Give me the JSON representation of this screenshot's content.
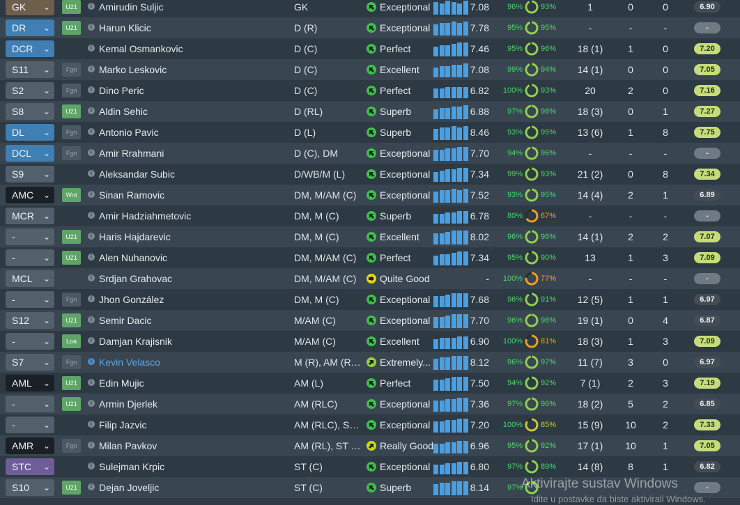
{
  "colors": {
    "accent_blue": "#4a9fe3",
    "rating_green": "#c6dc7a",
    "condition_green": "#49d56a",
    "sharpness_orange": "#f0a020",
    "highlight_name": "#5fa3dc"
  },
  "players": [
    {
      "pos": "GK",
      "pos_style": "brown",
      "badge": "U21",
      "badge_style": "green",
      "name": "Amirudin Suljic",
      "positions": "GK",
      "ability": "Exceptional",
      "ability_icon": "arrow-up-left",
      "ability_color": "#3dbf4a",
      "bars": [
        9,
        8,
        10,
        9,
        8,
        10
      ],
      "avg": "7.08",
      "cond": "96%",
      "cond_level": 0.96,
      "sharp": "93%",
      "sharp_level": 0.93,
      "sharp_color": "#8fd14f",
      "apps": "1",
      "goals": "0",
      "assists": "0",
      "rating": "6.90",
      "rating_style": "dark"
    },
    {
      "pos": "DR",
      "pos_style": "blue",
      "badge": "U21",
      "badge_style": "green",
      "name": "Harun Klicic",
      "positions": "D (R)",
      "ability": "Exceptional",
      "ability_icon": "arrow-up-left",
      "ability_color": "#3dbf4a",
      "bars": [
        8,
        9,
        9,
        10,
        9,
        10
      ],
      "avg": "7.78",
      "cond": "95%",
      "cond_level": 0.95,
      "sharp": "95%",
      "sharp_level": 0.95,
      "sharp_color": "#8fd14f",
      "apps": "-",
      "goals": "-",
      "assists": "-",
      "rating": "-",
      "rating_style": "grey"
    },
    {
      "pos": "DCR",
      "pos_style": "blue",
      "badge": "",
      "badge_style": "none",
      "name": "Kemal Osmankovic",
      "positions": "D (C)",
      "ability": "Perfect",
      "ability_icon": "arrow-up-left",
      "ability_color": "#3dbf4a",
      "bars": [
        7,
        8,
        8,
        9,
        10,
        10
      ],
      "avg": "7.46",
      "cond": "95%",
      "cond_level": 0.95,
      "sharp": "96%",
      "sharp_level": 0.96,
      "sharp_color": "#8fd14f",
      "apps": "18 (1)",
      "goals": "1",
      "assists": "0",
      "rating": "7.20",
      "rating_style": "green"
    },
    {
      "pos": "S11",
      "pos_style": "grey",
      "badge": "Fgn",
      "badge_style": "gray",
      "name": "Marko Leskovic",
      "positions": "D (C)",
      "ability": "Excellent",
      "ability_icon": "arrow-up-left",
      "ability_color": "#3dbf4a",
      "bars": [
        7,
        8,
        8,
        9,
        9,
        10
      ],
      "avg": "7.08",
      "cond": "99%",
      "cond_level": 0.99,
      "sharp": "94%",
      "sharp_level": 0.94,
      "sharp_color": "#8fd14f",
      "apps": "14 (1)",
      "goals": "0",
      "assists": "0",
      "rating": "7.05",
      "rating_style": "green"
    },
    {
      "pos": "S2",
      "pos_style": "grey",
      "badge": "Fgn",
      "badge_style": "gray",
      "name": "Dino Peric",
      "positions": "D (C)",
      "ability": "Perfect",
      "ability_icon": "arrow-up-left",
      "ability_color": "#3dbf4a",
      "bars": [
        7,
        7,
        8,
        8,
        8,
        8
      ],
      "avg": "6.82",
      "cond": "100%",
      "cond_level": 1.0,
      "sharp": "93%",
      "sharp_level": 0.93,
      "sharp_color": "#8fd14f",
      "apps": "20",
      "goals": "2",
      "assists": "0",
      "rating": "7.16",
      "rating_style": "green"
    },
    {
      "pos": "S8",
      "pos_style": "grey",
      "badge": "U21",
      "badge_style": "green",
      "name": "Aldin Sehic",
      "positions": "D (RL)",
      "ability": "Superb",
      "ability_icon": "arrow-up-left",
      "ability_color": "#3dbf4a",
      "bars": [
        7,
        8,
        8,
        9,
        9,
        10
      ],
      "avg": "6.88",
      "cond": "97%",
      "cond_level": 0.97,
      "sharp": "98%",
      "sharp_level": 0.98,
      "sharp_color": "#8fd14f",
      "apps": "18 (3)",
      "goals": "0",
      "assists": "1",
      "rating": "7.27",
      "rating_style": "green"
    },
    {
      "pos": "DL",
      "pos_style": "blue",
      "badge": "Fgn",
      "badge_style": "gray",
      "name": "Antonio Pavic",
      "positions": "D (L)",
      "ability": "Superb",
      "ability_icon": "arrow-up-left",
      "ability_color": "#3dbf4a",
      "bars": [
        8,
        9,
        9,
        10,
        9,
        10
      ],
      "avg": "8.46",
      "cond": "93%",
      "cond_level": 0.93,
      "sharp": "95%",
      "sharp_level": 0.95,
      "sharp_color": "#8fd14f",
      "apps": "13 (6)",
      "goals": "1",
      "assists": "8",
      "rating": "7.75",
      "rating_style": "green"
    },
    {
      "pos": "DCL",
      "pos_style": "blue",
      "badge": "Fgn",
      "badge_style": "gray",
      "name": "Amir Rrahmani",
      "positions": "D (C), DM",
      "ability": "Exceptional",
      "ability_icon": "arrow-up-left",
      "ability_color": "#3dbf4a",
      "bars": [
        8,
        8,
        9,
        9,
        10,
        10
      ],
      "avg": "7.70",
      "cond": "94%",
      "cond_level": 0.94,
      "sharp": "96%",
      "sharp_level": 0.96,
      "sharp_color": "#8fd14f",
      "apps": "-",
      "goals": "-",
      "assists": "-",
      "rating": "-",
      "rating_style": "grey"
    },
    {
      "pos": "S9",
      "pos_style": "grey",
      "badge": "",
      "badge_style": "none",
      "name": "Aleksandar Subic",
      "positions": "D/WB/M (L)",
      "ability": "Exceptional",
      "ability_icon": "arrow-up-left",
      "ability_color": "#3dbf4a",
      "bars": [
        7,
        8,
        9,
        9,
        10,
        10
      ],
      "avg": "7.34",
      "cond": "99%",
      "cond_level": 0.99,
      "sharp": "93%",
      "sharp_level": 0.93,
      "sharp_color": "#8fd14f",
      "apps": "21 (2)",
      "goals": "0",
      "assists": "8",
      "rating": "7.34",
      "rating_style": "green"
    },
    {
      "pos": "AMC",
      "pos_style": "black",
      "badge": "Wnt",
      "badge_style": "green",
      "name": "Sinan Ramovic",
      "positions": "DM, M/AM (C)",
      "ability": "Exceptional",
      "ability_icon": "arrow-up-left",
      "ability_color": "#3dbf4a",
      "bars": [
        8,
        9,
        9,
        10,
        9,
        10
      ],
      "avg": "7.52",
      "cond": "93%",
      "cond_level": 0.93,
      "sharp": "95%",
      "sharp_level": 0.95,
      "sharp_color": "#8fd14f",
      "apps": "14 (4)",
      "goals": "2",
      "assists": "1",
      "rating": "6.89",
      "rating_style": "dark"
    },
    {
      "pos": "MCR",
      "pos_style": "grey",
      "badge": "",
      "badge_style": "none",
      "name": "Amir Hadziahmetovic",
      "positions": "DM, M (C)",
      "ability": "Superb",
      "ability_icon": "arrow-up-left",
      "ability_color": "#3dbf4a",
      "bars": [
        7,
        7,
        8,
        8,
        9,
        9
      ],
      "avg": "6.78",
      "cond": "80%",
      "cond_level": 0.8,
      "sharp": "67%",
      "sharp_level": 0.67,
      "sharp_color": "#f0a020",
      "apps": "-",
      "goals": "-",
      "assists": "-",
      "rating": "-",
      "rating_style": "grey"
    },
    {
      "pos": "-",
      "pos_style": "grey",
      "badge": "U21",
      "badge_style": "green",
      "name": "Haris Hajdarevic",
      "positions": "DM, M (C)",
      "ability": "Excellent",
      "ability_icon": "arrow-up-left",
      "ability_color": "#3dbf4a",
      "bars": [
        8,
        8,
        9,
        10,
        10,
        10
      ],
      "avg": "8.02",
      "cond": "96%",
      "cond_level": 0.96,
      "sharp": "96%",
      "sharp_level": 0.96,
      "sharp_color": "#8fd14f",
      "apps": "14 (1)",
      "goals": "2",
      "assists": "2",
      "rating": "7.07",
      "rating_style": "green"
    },
    {
      "pos": "-",
      "pos_style": "grey",
      "badge": "U21",
      "badge_style": "green",
      "name": "Alen Nuhanovic",
      "positions": "DM, M/AM (C)",
      "ability": "Perfect",
      "ability_icon": "arrow-up-left",
      "ability_color": "#3dbf4a",
      "bars": [
        7,
        8,
        8,
        9,
        10,
        10
      ],
      "avg": "7.34",
      "cond": "95%",
      "cond_level": 0.95,
      "sharp": "90%",
      "sharp_level": 0.9,
      "sharp_color": "#8fd14f",
      "apps": "13",
      "goals": "1",
      "assists": "3",
      "rating": "7.09",
      "rating_style": "green"
    },
    {
      "pos": "MCL",
      "pos_style": "grey",
      "badge": "",
      "badge_style": "none",
      "name": "Srdjan Grahovac",
      "positions": "DM, M/AM (C)",
      "ability": "Quite Good",
      "ability_icon": "arrow-right",
      "ability_color": "#e6d21a",
      "bars": [],
      "avg": "-",
      "cond": "100%",
      "cond_level": 1.0,
      "sharp": "77%",
      "sharp_level": 0.77,
      "sharp_color": "#f0a020",
      "apps": "-",
      "goals": "-",
      "assists": "-",
      "rating": "-",
      "rating_style": "grey"
    },
    {
      "pos": "-",
      "pos_style": "grey",
      "badge": "Fgn",
      "badge_style": "gray",
      "name": "Jhon González",
      "positions": "DM, M (C)",
      "ability": "Exceptional",
      "ability_icon": "arrow-up-left",
      "ability_color": "#3dbf4a",
      "bars": [
        8,
        8,
        9,
        10,
        10,
        10
      ],
      "avg": "7.68",
      "cond": "96%",
      "cond_level": 0.96,
      "sharp": "91%",
      "sharp_level": 0.91,
      "sharp_color": "#8fd14f",
      "apps": "12 (5)",
      "goals": "1",
      "assists": "1",
      "rating": "6.97",
      "rating_style": "dark"
    },
    {
      "pos": "S12",
      "pos_style": "grey",
      "badge": "U21",
      "badge_style": "green",
      "name": "Semir Dacic",
      "positions": "M/AM (C)",
      "ability": "Exceptional",
      "ability_icon": "arrow-up-left",
      "ability_color": "#3dbf4a",
      "bars": [
        8,
        8,
        9,
        10,
        10,
        10
      ],
      "avg": "7.70",
      "cond": "96%",
      "cond_level": 0.96,
      "sharp": "98%",
      "sharp_level": 0.98,
      "sharp_color": "#8fd14f",
      "apps": "19 (1)",
      "goals": "0",
      "assists": "4",
      "rating": "6.87",
      "rating_style": "dark"
    },
    {
      "pos": "-",
      "pos_style": "grey",
      "badge": "Loa",
      "badge_style": "green",
      "name": "Damjan Krajisnik",
      "positions": "M/AM (C)",
      "ability": "Excellent",
      "ability_icon": "arrow-up-left",
      "ability_color": "#3dbf4a",
      "bars": [
        7,
        8,
        8,
        8,
        9,
        9
      ],
      "avg": "6.90",
      "cond": "100%",
      "cond_level": 1.0,
      "sharp": "81%",
      "sharp_level": 0.81,
      "sharp_color": "#f0a020",
      "apps": "18 (3)",
      "goals": "1",
      "assists": "3",
      "rating": "7.09",
      "rating_style": "green"
    },
    {
      "pos": "S7",
      "pos_style": "grey",
      "badge": "Fgn",
      "badge_style": "gray",
      "name": "Kevin Velasco",
      "name_style": "hl",
      "positions": "M (R), AM (RC),...",
      "ability": "Extremely...",
      "ability_icon": "arrow-up-right",
      "ability_color": "#93d13a",
      "bars": [
        8,
        9,
        9,
        10,
        10,
        10
      ],
      "avg": "8.12",
      "cond": "96%",
      "cond_level": 0.96,
      "sharp": "97%",
      "sharp_level": 0.97,
      "sharp_color": "#8fd14f",
      "apps": "11 (7)",
      "goals": "3",
      "assists": "0",
      "rating": "6.97",
      "rating_style": "dark"
    },
    {
      "pos": "AML",
      "pos_style": "black",
      "badge": "U21",
      "badge_style": "green",
      "name": "Edin Mujic",
      "positions": "AM (L)",
      "ability": "Perfect",
      "ability_icon": "arrow-up-left",
      "ability_color": "#3dbf4a",
      "bars": [
        8,
        8,
        9,
        10,
        10,
        10
      ],
      "avg": "7.50",
      "cond": "94%",
      "cond_level": 0.94,
      "sharp": "92%",
      "sharp_level": 0.92,
      "sharp_color": "#8fd14f",
      "apps": "7 (1)",
      "goals": "2",
      "assists": "3",
      "rating": "7.19",
      "rating_style": "green"
    },
    {
      "pos": "-",
      "pos_style": "grey",
      "badge": "U21",
      "badge_style": "green",
      "name": "Armin Djerlek",
      "positions": "AM (RLC)",
      "ability": "Exceptional",
      "ability_icon": "arrow-up-left",
      "ability_color": "#3dbf4a",
      "bars": [
        8,
        8,
        9,
        9,
        10,
        10
      ],
      "avg": "7.36",
      "cond": "97%",
      "cond_level": 0.97,
      "sharp": "96%",
      "sharp_level": 0.96,
      "sharp_color": "#8fd14f",
      "apps": "18 (2)",
      "goals": "5",
      "assists": "2",
      "rating": "6.85",
      "rating_style": "dark"
    },
    {
      "pos": "-",
      "pos_style": "grey",
      "badge": "",
      "badge_style": "none",
      "name": "Filip Jazvic",
      "positions": "AM (RLC), ST (C)",
      "ability": "Exceptional",
      "ability_icon": "arrow-up-left",
      "ability_color": "#3dbf4a",
      "bars": [
        8,
        8,
        9,
        9,
        10,
        10
      ],
      "avg": "7.20",
      "cond": "100%",
      "cond_level": 1.0,
      "sharp": "85%",
      "sharp_level": 0.85,
      "sharp_color": "#c8c83a",
      "apps": "15 (9)",
      "goals": "10",
      "assists": "2",
      "rating": "7.33",
      "rating_style": "green"
    },
    {
      "pos": "AMR",
      "pos_style": "black",
      "badge": "Fgn",
      "badge_style": "gray",
      "name": "Milan Pavkov",
      "positions": "AM (RL), ST (C)",
      "ability": "Really Good",
      "ability_icon": "arrow-up-right",
      "ability_color": "#c9d820",
      "bars": [
        7,
        7,
        8,
        8,
        9,
        9
      ],
      "avg": "6.96",
      "cond": "95%",
      "cond_level": 0.95,
      "sharp": "92%",
      "sharp_level": 0.92,
      "sharp_color": "#8fd14f",
      "apps": "17 (1)",
      "goals": "10",
      "assists": "1",
      "rating": "7.05",
      "rating_style": "green"
    },
    {
      "pos": "STC",
      "pos_style": "purple",
      "badge": "",
      "badge_style": "none",
      "name": "Sulejman Krpic",
      "positions": "ST (C)",
      "ability": "Exceptional",
      "ability_icon": "arrow-up-left",
      "ability_color": "#3dbf4a",
      "bars": [
        7,
        7,
        8,
        8,
        9,
        9
      ],
      "avg": "6.80",
      "cond": "97%",
      "cond_level": 0.97,
      "sharp": "89%",
      "sharp_level": 0.89,
      "sharp_color": "#8fd14f",
      "apps": "14 (8)",
      "goals": "8",
      "assists": "1",
      "rating": "6.82",
      "rating_style": "dark"
    },
    {
      "pos": "S10",
      "pos_style": "grey",
      "badge": "U21",
      "badge_style": "green",
      "name": "Dejan Joveljic",
      "positions": "ST (C)",
      "ability": "Superb",
      "ability_icon": "arrow-up-left",
      "ability_color": "#3dbf4a",
      "bars": [
        8,
        9,
        9,
        10,
        10,
        10
      ],
      "avg": "8.14",
      "cond": "97%",
      "cond_level": 0.97,
      "sharp": "",
      "sharp_level": 0.95,
      "sharp_color": "#8fd14f",
      "apps": "",
      "goals": "",
      "assists": "",
      "rating": "-",
      "rating_style": "grey"
    }
  ],
  "watermark": {
    "line1": "Aktivirajte sustav Windows",
    "line2": "Idite u postavke da biste aktivirali Windows."
  }
}
